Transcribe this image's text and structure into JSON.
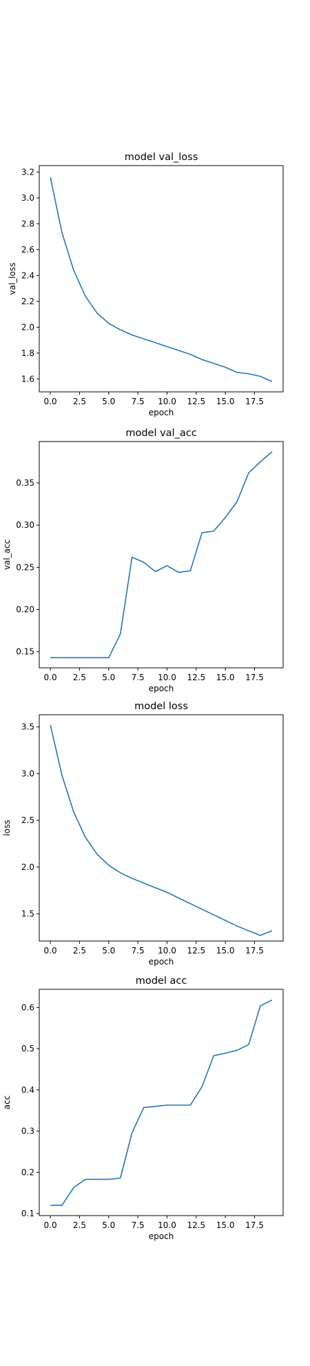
{
  "chart_data": [
    {
      "type": "line",
      "title": "model val_loss",
      "xlabel": "epoch",
      "ylabel": "val_loss",
      "xlim": [
        -0.95,
        19.95
      ],
      "ylim": [
        1.5,
        3.25
      ],
      "xticks": [
        0,
        2.5,
        5,
        7.5,
        10,
        12.5,
        15,
        17.5
      ],
      "xtick_labels": [
        "0.0",
        "2.5",
        "5.0",
        "7.5",
        "10.0",
        "12.5",
        "15.0",
        "17.5"
      ],
      "yticks": [
        1.6,
        1.8,
        2.0,
        2.2,
        2.4,
        2.6,
        2.8,
        3.0,
        3.2
      ],
      "ytick_labels": [
        "1.6",
        "1.8",
        "2.0",
        "2.2",
        "2.4",
        "2.6",
        "2.8",
        "3.0",
        "3.2"
      ],
      "grid": false,
      "color": "#1f77b4",
      "x": [
        0,
        1,
        2,
        3,
        4,
        5,
        6,
        7,
        8,
        9,
        10,
        11,
        12,
        13,
        14,
        15,
        16,
        17,
        18,
        19
      ],
      "values": [
        3.16,
        2.73,
        2.44,
        2.24,
        2.11,
        2.03,
        1.98,
        1.94,
        1.91,
        1.88,
        1.85,
        1.82,
        1.79,
        1.75,
        1.72,
        1.69,
        1.65,
        1.64,
        1.62,
        1.58
      ]
    },
    {
      "type": "line",
      "title": "model val_acc",
      "xlabel": "epoch",
      "ylabel": "val_acc",
      "xlim": [
        -0.95,
        19.95
      ],
      "ylim": [
        0.131,
        0.399
      ],
      "xticks": [
        0,
        2.5,
        5,
        7.5,
        10,
        12.5,
        15,
        17.5
      ],
      "xtick_labels": [
        "0.0",
        "2.5",
        "5.0",
        "7.5",
        "10.0",
        "12.5",
        "15.0",
        "17.5"
      ],
      "yticks": [
        0.15,
        0.2,
        0.25,
        0.3,
        0.35
      ],
      "ytick_labels": [
        "0.15",
        "0.20",
        "0.25",
        "0.30",
        "0.35"
      ],
      "grid": false,
      "color": "#1f77b4",
      "x": [
        0,
        1,
        2,
        3,
        4,
        5,
        6,
        7,
        8,
        9,
        10,
        11,
        12,
        13,
        14,
        15,
        16,
        17,
        18,
        19
      ],
      "values": [
        0.143,
        0.143,
        0.143,
        0.143,
        0.143,
        0.143,
        0.171,
        0.262,
        0.256,
        0.245,
        0.252,
        0.244,
        0.246,
        0.291,
        0.293,
        0.309,
        0.328,
        0.362,
        0.375,
        0.387
      ]
    },
    {
      "type": "line",
      "title": "model loss",
      "xlabel": "epoch",
      "ylabel": "loss",
      "xlim": [
        -0.95,
        19.95
      ],
      "ylim": [
        1.21,
        3.63
      ],
      "xticks": [
        0,
        2.5,
        5,
        7.5,
        10,
        12.5,
        15,
        17.5
      ],
      "xtick_labels": [
        "0.0",
        "2.5",
        "5.0",
        "7.5",
        "10.0",
        "12.5",
        "15.0",
        "17.5"
      ],
      "yticks": [
        1.5,
        2.0,
        2.5,
        3.0,
        3.5
      ],
      "ytick_labels": [
        "1.5",
        "2.0",
        "2.5",
        "3.0",
        "3.5"
      ],
      "grid": false,
      "color": "#1f77b4",
      "x": [
        0,
        1,
        2,
        3,
        4,
        5,
        6,
        7,
        8,
        9,
        10,
        11,
        12,
        13,
        14,
        15,
        16,
        17,
        18,
        19
      ],
      "values": [
        3.52,
        2.98,
        2.59,
        2.32,
        2.14,
        2.02,
        1.94,
        1.88,
        1.83,
        1.78,
        1.73,
        1.67,
        1.61,
        1.55,
        1.49,
        1.43,
        1.37,
        1.32,
        1.27,
        1.32
      ]
    },
    {
      "type": "line",
      "title": "model acc",
      "xlabel": "epoch",
      "ylabel": "acc",
      "xlim": [
        -0.95,
        19.95
      ],
      "ylim": [
        0.095,
        0.644
      ],
      "xticks": [
        0,
        2.5,
        5,
        7.5,
        10,
        12.5,
        15,
        17.5
      ],
      "xtick_labels": [
        "0.0",
        "2.5",
        "5.0",
        "7.5",
        "10.0",
        "12.5",
        "15.0",
        "17.5"
      ],
      "yticks": [
        0.1,
        0.2,
        0.3,
        0.4,
        0.5,
        0.6
      ],
      "ytick_labels": [
        "0.1",
        "0.2",
        "0.3",
        "0.4",
        "0.5",
        "0.6"
      ],
      "grid": false,
      "color": "#1f77b4",
      "x": [
        0,
        1,
        2,
        3,
        4,
        5,
        6,
        7,
        8,
        9,
        10,
        11,
        12,
        13,
        14,
        15,
        16,
        17,
        18,
        19
      ],
      "values": [
        0.12,
        0.12,
        0.163,
        0.183,
        0.183,
        0.183,
        0.186,
        0.296,
        0.357,
        0.36,
        0.363,
        0.363,
        0.363,
        0.408,
        0.483,
        0.489,
        0.496,
        0.51,
        0.604,
        0.618
      ]
    }
  ]
}
